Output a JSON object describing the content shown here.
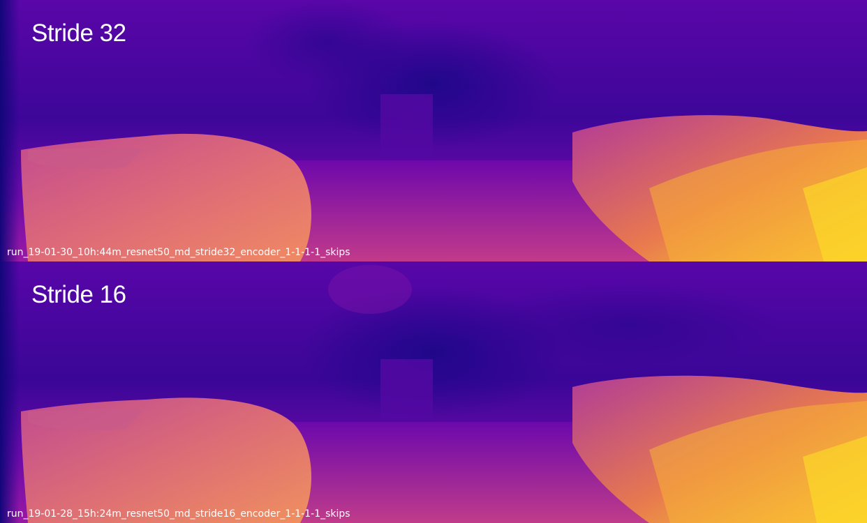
{
  "panels": [
    {
      "title": "Stride 32",
      "run_label": "run_19-01-30_10h:44m_resnet50_md_stride32_encoder_1-1-1-1_skips"
    },
    {
      "title": "Stride 16",
      "run_label": "run_19-01-28_15h:24m_resnet50_md_stride16_encoder_1-1-1-1_skips"
    }
  ],
  "colormap": {
    "name": "plasma",
    "far": "#1a0a8c",
    "mid": "#8b10b0",
    "near": "#f2a838",
    "nearest": "#fde024"
  }
}
